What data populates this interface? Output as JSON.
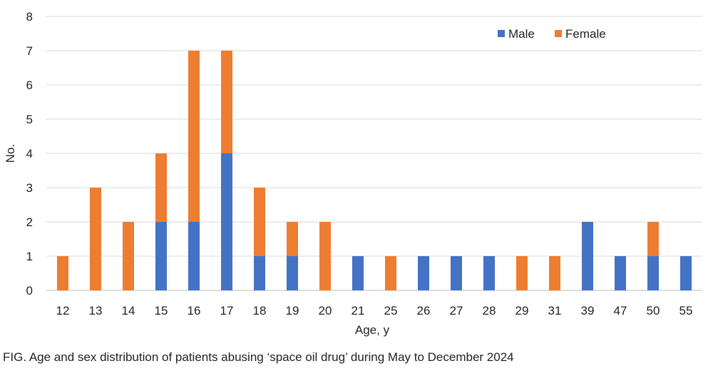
{
  "chart_data": {
    "type": "bar",
    "stacked": true,
    "xlabel": "Age, y",
    "ylabel": "No.",
    "ylim": [
      0,
      8
    ],
    "yticks": [
      "0",
      "1",
      "2",
      "3",
      "4",
      "5",
      "6",
      "7",
      "8"
    ],
    "categories": [
      "12",
      "13",
      "14",
      "15",
      "16",
      "17",
      "18",
      "19",
      "20",
      "21",
      "25",
      "26",
      "27",
      "28",
      "29",
      "31",
      "39",
      "47",
      "50",
      "55"
    ],
    "series": [
      {
        "name": "Male",
        "color": "#4472C4",
        "values": [
          0,
          0,
          0,
          2,
          2,
          4,
          1,
          1,
          0,
          1,
          0,
          1,
          1,
          1,
          0,
          0,
          2,
          1,
          1,
          1
        ]
      },
      {
        "name": "Female",
        "color": "#ED7D31",
        "values": [
          1,
          3,
          2,
          2,
          5,
          3,
          2,
          1,
          2,
          0,
          1,
          0,
          0,
          0,
          1,
          1,
          0,
          0,
          1,
          0
        ]
      }
    ],
    "legend_position": "top-right",
    "grid": true
  },
  "caption": "FIG. Age and sex distribution of patients abusing ‘space oil drug’ during May to December 2024"
}
